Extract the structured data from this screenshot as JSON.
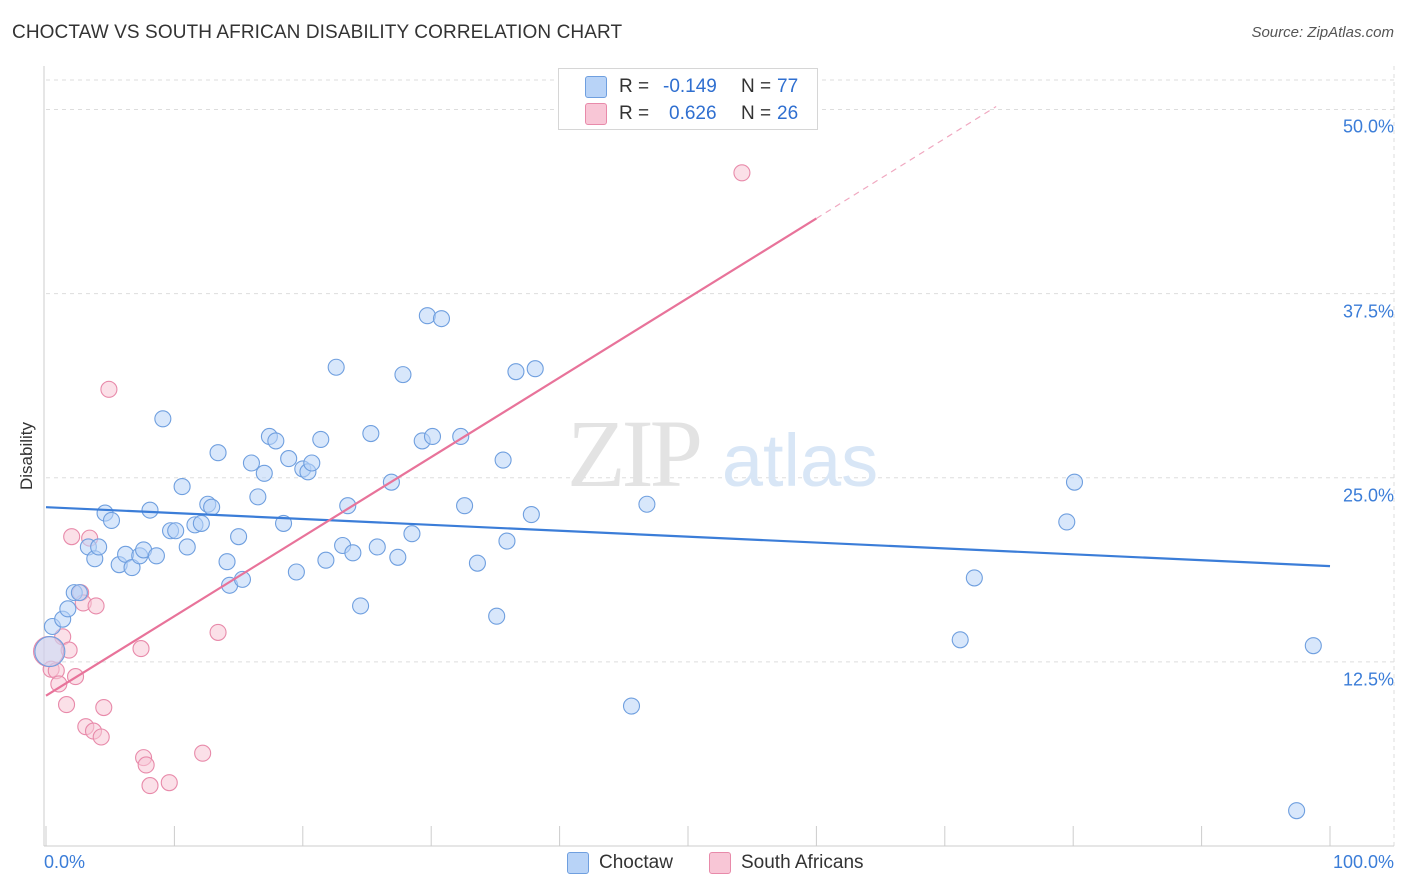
{
  "title": "CHOCTAW VS SOUTH AFRICAN DISABILITY CORRELATION CHART",
  "source": "Source: ZipAtlas.com",
  "watermark": {
    "zip": "ZIP",
    "atlas": "atlas"
  },
  "colors": {
    "blue": "#3b7dd8",
    "blue_fill": "#b8d3f7",
    "pink": "#e8739a",
    "pink_fill": "#f8c6d6",
    "grid": "#dddddd"
  },
  "legend": {
    "rows": [
      {
        "r_label": "R =",
        "r_value": "-0.149",
        "n_label": "N =",
        "n_value": "77"
      },
      {
        "r_label": "R =",
        "r_value": "0.626",
        "n_label": "N =",
        "n_value": "26"
      }
    ]
  },
  "bottom_legend": {
    "choctaw": "Choctaw",
    "south_africans": "South Africans"
  },
  "chart_data": {
    "type": "scatter",
    "title": "CHOCTAW VS SOUTH AFRICAN DISABILITY CORRELATION CHART",
    "xlabel": "",
    "ylabel": "Disability",
    "xlim": [
      0,
      100
    ],
    "ylim": [
      0,
      52
    ],
    "x_tick_labels": [
      "0.0%",
      "100.0%"
    ],
    "y_ticks": [
      12.5,
      25.0,
      37.5,
      50.0
    ],
    "y_tick_labels": [
      "12.5%",
      "25.0%",
      "37.5%",
      "50.0%"
    ],
    "grid": true,
    "series": [
      {
        "name": "Choctaw",
        "color": "#3b7dd8",
        "trend": {
          "x0": 0,
          "y0": 23.0,
          "x1": 100,
          "y1": 19.0
        },
        "points": [
          [
            0.5,
            14.9
          ],
          [
            1.3,
            15.4
          ],
          [
            1.7,
            16.1
          ],
          [
            2.2,
            17.2
          ],
          [
            2.6,
            17.2
          ],
          [
            3.3,
            20.3
          ],
          [
            3.8,
            19.5
          ],
          [
            4.1,
            20.3
          ],
          [
            4.6,
            22.6
          ],
          [
            5.1,
            22.1
          ],
          [
            5.7,
            19.1
          ],
          [
            6.2,
            19.8
          ],
          [
            6.7,
            18.9
          ],
          [
            7.3,
            19.7
          ],
          [
            7.6,
            20.1
          ],
          [
            8.1,
            22.8
          ],
          [
            8.6,
            19.7
          ],
          [
            9.1,
            29.0
          ],
          [
            9.7,
            21.4
          ],
          [
            10.1,
            21.4
          ],
          [
            10.6,
            24.4
          ],
          [
            11.0,
            20.3
          ],
          [
            11.6,
            21.8
          ],
          [
            12.1,
            21.9
          ],
          [
            12.6,
            23.2
          ],
          [
            12.9,
            23.0
          ],
          [
            13.4,
            26.7
          ],
          [
            14.1,
            19.3
          ],
          [
            14.3,
            17.7
          ],
          [
            15.0,
            21.0
          ],
          [
            15.3,
            18.1
          ],
          [
            16.0,
            26.0
          ],
          [
            16.5,
            23.7
          ],
          [
            17.0,
            25.3
          ],
          [
            17.4,
            27.8
          ],
          [
            17.9,
            27.5
          ],
          [
            18.5,
            21.9
          ],
          [
            18.9,
            26.3
          ],
          [
            19.5,
            18.6
          ],
          [
            20.0,
            25.6
          ],
          [
            20.4,
            25.4
          ],
          [
            20.7,
            26.0
          ],
          [
            21.4,
            27.6
          ],
          [
            21.8,
            19.4
          ],
          [
            22.6,
            32.5
          ],
          [
            23.1,
            20.4
          ],
          [
            23.5,
            23.1
          ],
          [
            23.9,
            19.9
          ],
          [
            24.5,
            16.3
          ],
          [
            25.3,
            28.0
          ],
          [
            25.8,
            20.3
          ],
          [
            26.9,
            24.7
          ],
          [
            27.4,
            19.6
          ],
          [
            27.8,
            32.0
          ],
          [
            28.5,
            21.2
          ],
          [
            29.3,
            27.5
          ],
          [
            29.7,
            36.0
          ],
          [
            30.1,
            27.8
          ],
          [
            30.8,
            35.8
          ],
          [
            32.3,
            27.8
          ],
          [
            32.6,
            23.1
          ],
          [
            33.6,
            19.2
          ],
          [
            35.1,
            15.6
          ],
          [
            35.6,
            26.2
          ],
          [
            35.9,
            20.7
          ],
          [
            36.6,
            32.2
          ],
          [
            37.8,
            22.5
          ],
          [
            38.1,
            32.4
          ],
          [
            45.6,
            9.5
          ],
          [
            46.8,
            23.2
          ],
          [
            72.3,
            18.2
          ],
          [
            71.2,
            14.0
          ],
          [
            79.5,
            22.0
          ],
          [
            80.1,
            24.7
          ],
          [
            97.4,
            2.4
          ],
          [
            98.7,
            13.6
          ],
          [
            0.3,
            13.2
          ]
        ]
      },
      {
        "name": "South Africans",
        "color": "#e8739a",
        "trend": {
          "x0": 0,
          "y0": 10.2,
          "x1": 60,
          "y1": 42.6,
          "dash_to_x": 74,
          "dash_to_y": 50.2
        },
        "points": [
          [
            0.4,
            12.0
          ],
          [
            0.8,
            11.9
          ],
          [
            1.0,
            11.0
          ],
          [
            1.3,
            14.2
          ],
          [
            1.6,
            9.6
          ],
          [
            1.8,
            13.3
          ],
          [
            2.0,
            21.0
          ],
          [
            2.3,
            11.5
          ],
          [
            2.7,
            17.2
          ],
          [
            2.9,
            16.5
          ],
          [
            3.1,
            8.1
          ],
          [
            3.4,
            20.9
          ],
          [
            3.7,
            7.8
          ],
          [
            3.9,
            16.3
          ],
          [
            4.3,
            7.4
          ],
          [
            4.5,
            9.4
          ],
          [
            4.9,
            31.0
          ],
          [
            7.4,
            13.4
          ],
          [
            7.6,
            6.0
          ],
          [
            7.8,
            5.5
          ],
          [
            8.1,
            4.1
          ],
          [
            9.6,
            4.3
          ],
          [
            12.2,
            6.3
          ],
          [
            13.4,
            14.5
          ],
          [
            54.2,
            45.7
          ],
          [
            0.2,
            13.2
          ]
        ]
      }
    ]
  }
}
